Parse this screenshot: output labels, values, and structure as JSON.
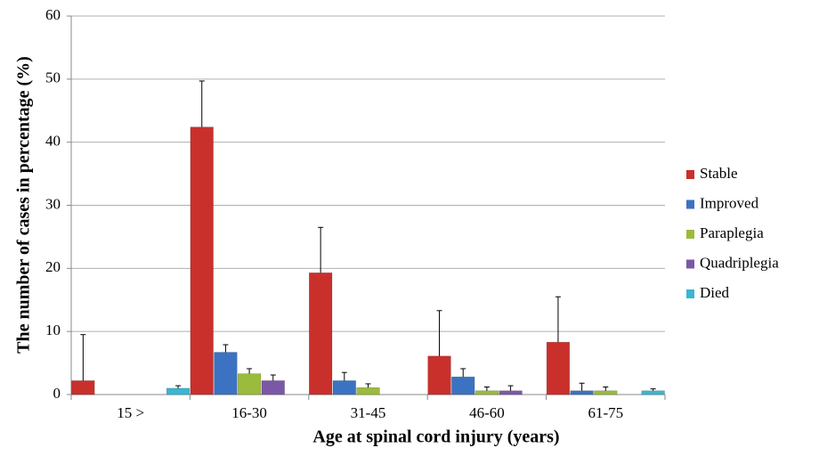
{
  "chart_data": {
    "type": "bar",
    "xlabel": "Age at spinal cord injury (years)",
    "ylabel": "The number of cases in percentage (%)",
    "categories": [
      "15 >",
      "16-30",
      "31-45",
      "46-60",
      "61-75"
    ],
    "series": [
      {
        "name": "Stable",
        "color": "#c9302c",
        "values": [
          2.2,
          42.4,
          19.3,
          6.1,
          8.3
        ],
        "errors": [
          7.3,
          7.3,
          7.2,
          7.2,
          7.2
        ]
      },
      {
        "name": "Improved",
        "color": "#3c72c2",
        "values": [
          0,
          6.7,
          2.2,
          2.8,
          0.6
        ],
        "errors": [
          0,
          1.2,
          1.3,
          1.3,
          1.2
        ]
      },
      {
        "name": "Paraplegia",
        "color": "#9bbb3c",
        "values": [
          0,
          3.3,
          1.1,
          0.6,
          0.6
        ],
        "errors": [
          0,
          0.8,
          0.6,
          0.6,
          0.6
        ]
      },
      {
        "name": "Quadriplegia",
        "color": "#7b58a6",
        "values": [
          0,
          2.2,
          0,
          0.6,
          0
        ],
        "errors": [
          0,
          0.9,
          0,
          0.8,
          0
        ]
      },
      {
        "name": "Died",
        "color": "#3ab6d2",
        "values": [
          1.0,
          0,
          0,
          0,
          0.6
        ],
        "errors": [
          0.4,
          0,
          0,
          0,
          0.3
        ]
      }
    ],
    "ylim": [
      0,
      60
    ],
    "yticks": [
      0,
      10,
      20,
      30,
      40,
      50,
      60
    ],
    "grid": true,
    "legend": "right"
  }
}
